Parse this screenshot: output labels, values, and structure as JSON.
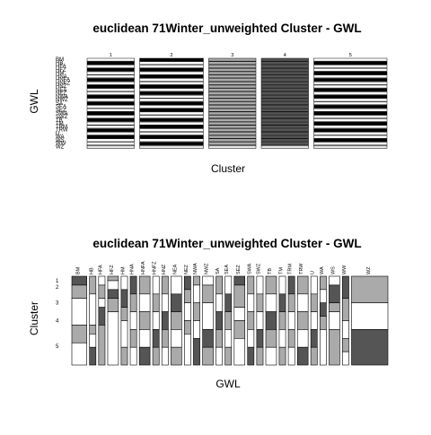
{
  "charts": {
    "top": {
      "title": "euclidean 71Winter_unweighted Cluster - GWL",
      "xlabel": "Cluster",
      "ylabel": "GWL"
    },
    "bottom": {
      "title": "euclidean 71Winter_unweighted Cluster - GWL",
      "xlabel": "GWL",
      "ylabel": "Cluster"
    }
  },
  "chart_data": [
    {
      "type": "mosaic",
      "title": "euclidean 71Winter_unweighted Cluster - GWL",
      "xlabel": "Cluster",
      "ylabel": "GWL",
      "column_labels": [
        "1",
        "2",
        "3",
        "4",
        "5"
      ],
      "row_labels": [
        "BM",
        "HB",
        "HFA",
        "HFZ",
        "HM",
        "HNA",
        "HNFA",
        "HNFZ",
        "HNZ",
        "NEA",
        "NEZ",
        "NWA",
        "NWZ",
        "SA",
        "SEA",
        "SEZ",
        "SWA",
        "SWZ",
        "TB",
        "TM",
        "TRM",
        "TRW",
        "U",
        "WA",
        "WS",
        "WW",
        "WZ"
      ],
      "column_widths": [
        0.2,
        0.27,
        0.2,
        0.2,
        0.31
      ],
      "column_shades": [
        "#ffffff",
        "#ffffff",
        "#aaaaaa",
        "#555555",
        "#ffffff"
      ],
      "cell_fill_note": "each cell shaded by standardized residual: white, light grey or dark grey"
    },
    {
      "type": "mosaic",
      "title": "euclidean 71Winter_unweighted Cluster - GWL",
      "xlabel": "GWL",
      "ylabel": "Cluster",
      "column_labels": [
        "BM",
        "HB",
        "HFA",
        "HFZ",
        "HM",
        "HNA",
        "HNFA",
        "HNFZ",
        "HNZ",
        "NEA",
        "NEZ",
        "NWA",
        "NWZ",
        "SA",
        "SEA",
        "SEZ",
        "SWA",
        "SWZ",
        "TB",
        "TM",
        "TRM",
        "TRW",
        "U",
        "WA",
        "WS",
        "WW",
        "WZ"
      ],
      "row_labels": [
        "1",
        "2",
        "3",
        "4",
        "5"
      ],
      "segments": [
        [
          0.1,
          0.15,
          0.3,
          0.2,
          0.25
        ],
        [
          0.2,
          0.35,
          0.1,
          0.15,
          0.2
        ],
        [
          0.1,
          0.15,
          0.1,
          0.2,
          0.45
        ],
        [
          0.05,
          0.1,
          0.1,
          0.15,
          0.6
        ],
        [
          0.15,
          0.2,
          0.15,
          0.3,
          0.2
        ],
        [
          0.2,
          0.2,
          0.2,
          0.2,
          0.2
        ],
        [
          0.2,
          0.2,
          0.2,
          0.2,
          0.2
        ],
        [
          0.2,
          0.2,
          0.2,
          0.2,
          0.2
        ],
        [
          0.2,
          0.2,
          0.2,
          0.2,
          0.2
        ],
        [
          0.2,
          0.2,
          0.2,
          0.2,
          0.2
        ],
        [
          0.15,
          0.15,
          0.2,
          0.15,
          0.35
        ],
        [
          0.1,
          0.2,
          0.2,
          0.2,
          0.3
        ],
        [
          0.1,
          0.2,
          0.3,
          0.2,
          0.2
        ],
        [
          0.2,
          0.2,
          0.2,
          0.2,
          0.2
        ],
        [
          0.2,
          0.2,
          0.2,
          0.2,
          0.2
        ],
        [
          0.1,
          0.25,
          0.15,
          0.2,
          0.3
        ],
        [
          0.2,
          0.2,
          0.2,
          0.2,
          0.2
        ],
        [
          0.2,
          0.2,
          0.2,
          0.2,
          0.2
        ],
        [
          0.2,
          0.2,
          0.2,
          0.2,
          0.2
        ],
        [
          0.2,
          0.2,
          0.2,
          0.2,
          0.2
        ],
        [
          0.2,
          0.2,
          0.2,
          0.2,
          0.2
        ],
        [
          0.2,
          0.2,
          0.2,
          0.2,
          0.2
        ],
        [
          0.2,
          0.2,
          0.2,
          0.2,
          0.2
        ],
        [
          0.15,
          0.15,
          0.15,
          0.15,
          0.4
        ],
        [
          0.1,
          0.2,
          0.1,
          0.2,
          0.4
        ],
        [
          0.25,
          0.25,
          0.2,
          0.15,
          0.15
        ],
        [
          0.0,
          0.0,
          0.3,
          0.3,
          0.4
        ]
      ],
      "fill_shades": {
        "white": "#ffffff",
        "light": "#aaaaaa",
        "dark": "#555555"
      }
    }
  ]
}
